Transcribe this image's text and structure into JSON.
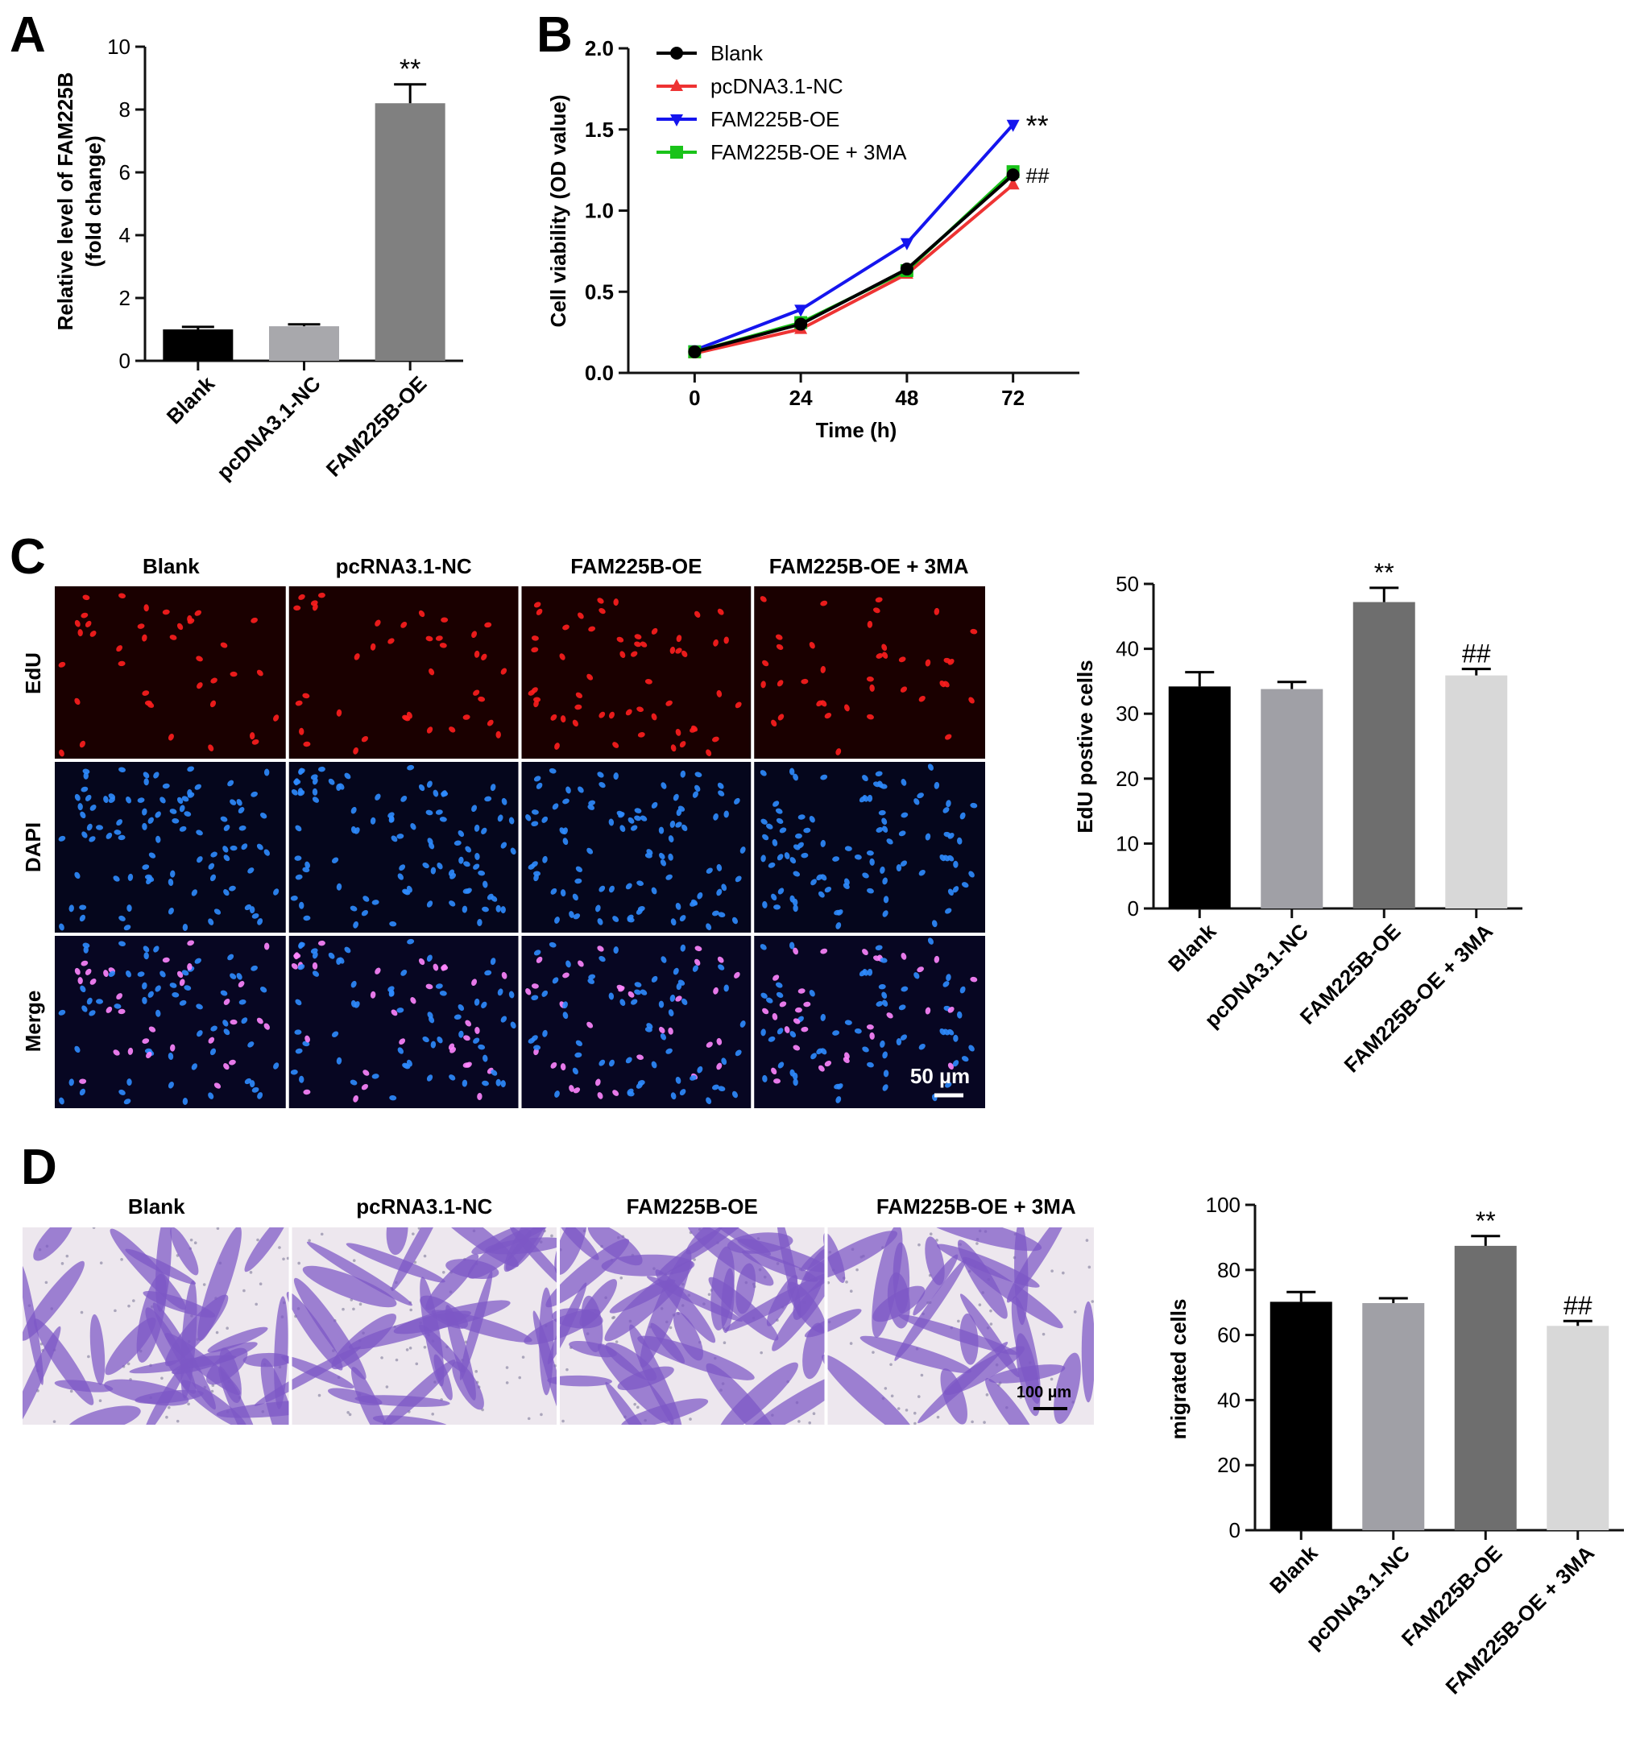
{
  "panel_letters": [
    "A",
    "B",
    "C",
    "D"
  ],
  "colors": {
    "black": "#000000",
    "bar_light_gray": "#a0a0a6",
    "bar_dark_gray": "#6e6e6e",
    "bar_lightest_gray": "#d8d8d8",
    "red": "#ee3333",
    "blue": "#1515ee",
    "green": "#19c319",
    "edu_nuclei": "#ff1e1e",
    "dapi_nuclei": "#2f8cff",
    "merge_nuclei": "#ff86ff",
    "crystal_violet": "#7d58c6"
  },
  "chart_data": [
    {
      "panel": "A",
      "type": "bar",
      "categories": [
        "Blank",
        "pcDNA3.1-NC",
        "FAM225B-OE"
      ],
      "values": [
        1.0,
        1.1,
        8.2
      ],
      "errors": [
        0.08,
        0.06,
        0.6
      ],
      "colors": [
        "#000000",
        "#a8a8ac",
        "#808080"
      ],
      "annotations": [
        "",
        "",
        "**"
      ],
      "ylabel_line1": "Relative level of FAM225B",
      "ylabel_line2": "(fold change)",
      "xlabel": "",
      "ylim": [
        0,
        10
      ],
      "yticks": [
        0,
        2,
        4,
        6,
        8,
        10
      ]
    },
    {
      "panel": "B",
      "type": "line",
      "x": [
        0,
        24,
        48,
        72
      ],
      "xticks": [
        "0",
        "24",
        "48",
        "72"
      ],
      "xlim": [
        -15,
        87
      ],
      "xlabel": "Time (h)",
      "ylabel": "Cell viability (OD value)",
      "ylim": [
        0,
        2.0
      ],
      "yticks": [
        "0.0",
        "0.5",
        "1.0",
        "1.5",
        "2.0"
      ],
      "legend_position": "top-left",
      "series": [
        {
          "name": "Blank",
          "values": [
            0.13,
            0.3,
            0.64,
            1.22
          ],
          "color": "#000000",
          "marker": "circle"
        },
        {
          "name": "pcDNA3.1-NC",
          "values": [
            0.12,
            0.27,
            0.61,
            1.16
          ],
          "color": "#ee3333",
          "marker": "triangle-up"
        },
        {
          "name": "FAM225B-OE",
          "values": [
            0.14,
            0.39,
            0.8,
            1.53
          ],
          "color": "#1515ee",
          "marker": "triangle-down"
        },
        {
          "name": "FAM225B-OE + 3MA",
          "values": [
            0.13,
            0.31,
            0.63,
            1.24
          ],
          "color": "#19c319",
          "marker": "square"
        }
      ],
      "annotations": [
        {
          "text": "**",
          "series": "FAM225B-OE",
          "x": 72
        },
        {
          "text": "##",
          "series": "FAM225B-OE + 3MA",
          "x": 72
        }
      ]
    },
    {
      "panel": "C",
      "type": "bar",
      "categories": [
        "Blank",
        "pcDNA3.1-NC",
        "FAM225B-OE",
        "FAM225B-OE + 3MA"
      ],
      "values": [
        34.2,
        33.8,
        47.2,
        35.9
      ],
      "errors": [
        2.2,
        1.1,
        2.2,
        1.0
      ],
      "colors": [
        "#000000",
        "#a0a0a6",
        "#6e6e6e",
        "#d8d8d8"
      ],
      "annotations": [
        "",
        "",
        "**",
        "##"
      ],
      "ylabel": "EdU postive cells",
      "xlabel": "",
      "ylim": [
        0,
        50
      ],
      "yticks": [
        0,
        10,
        20,
        30,
        40,
        50
      ]
    },
    {
      "panel": "D",
      "type": "bar",
      "categories": [
        "Blank",
        "pcDNA3.1-NC",
        "FAM225B-OE",
        "FAM225B-OE + 3MA"
      ],
      "values": [
        70.2,
        69.8,
        87.4,
        62.8
      ],
      "errors": [
        3.0,
        1.5,
        3.0,
        1.5
      ],
      "colors": [
        "#000000",
        "#a0a0a6",
        "#6e6e6e",
        "#d8d8d8"
      ],
      "annotations": [
        "",
        "",
        "**",
        "##"
      ],
      "ylabel": "migrated cells",
      "xlabel": "",
      "ylim": [
        0,
        100
      ],
      "yticks": [
        0,
        20,
        40,
        60,
        80,
        100
      ]
    }
  ],
  "micrographs": {
    "C": {
      "column_headers": [
        "Blank",
        "pcRNA3.1-NC",
        "FAM225B-OE",
        "FAM225B-OE + 3MA"
      ],
      "row_labels": [
        "EdU",
        "DAPI",
        "Merge"
      ],
      "scale_bar": "50 µm"
    },
    "D": {
      "column_headers": [
        "Blank",
        "pcRNA3.1-NC",
        "FAM225B-OE",
        "FAM225B-OE + 3MA"
      ],
      "scale_bar": "100 µm"
    }
  }
}
